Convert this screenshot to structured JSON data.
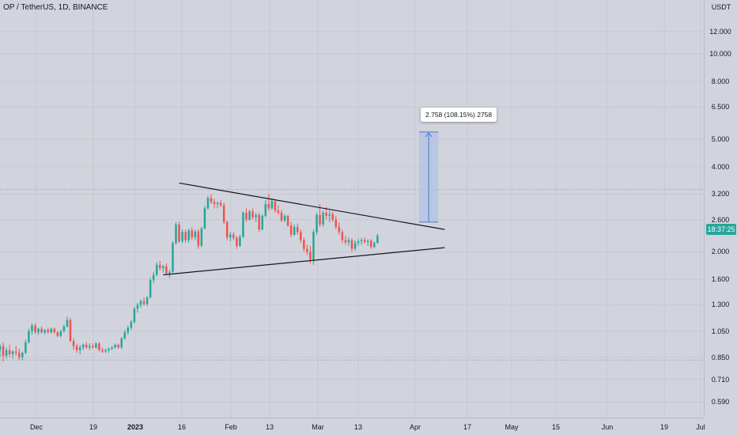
{
  "header": {
    "title": "OP / TetherUS, 1D, BINANCE"
  },
  "price_axis": {
    "unit": "USDT",
    "ticks": [
      "12.000",
      "10.000",
      "8.000",
      "6.500",
      "5.000",
      "4.000",
      "3.200",
      "2.600",
      "2.000",
      "1.600",
      "1.300",
      "1.050",
      "0.850",
      "0.710",
      "0.590"
    ],
    "current_price_time": "18:37:25"
  },
  "time_axis": {
    "labels": [
      {
        "text": "Dec",
        "bold": false
      },
      {
        "text": "19",
        "bold": false
      },
      {
        "text": "2023",
        "bold": true
      },
      {
        "text": "16",
        "bold": false
      },
      {
        "text": "Feb",
        "bold": false
      },
      {
        "text": "13",
        "bold": false
      },
      {
        "text": "Mar",
        "bold": false
      },
      {
        "text": "13",
        "bold": false
      },
      {
        "text": "Apr",
        "bold": false
      },
      {
        "text": "17",
        "bold": false
      },
      {
        "text": "May",
        "bold": false
      },
      {
        "text": "15",
        "bold": false
      },
      {
        "text": "Jun",
        "bold": false
      },
      {
        "text": "19",
        "bold": false
      },
      {
        "text": "Jul",
        "bold": false
      }
    ]
  },
  "measure": {
    "label": "2.758 (108.15%) 2758"
  },
  "colors": {
    "up": "#26a69a",
    "down": "#ef5350",
    "background": "#d1d4dc",
    "measure_fill": "#b2c3e6",
    "measure_line": "#4a78d4",
    "trendline": "#131722"
  },
  "chart_data": {
    "type": "candlestick",
    "title": "OP / TetherUS, 1D, BINANCE",
    "y_scale": "log",
    "ylim": [
      0.52,
      15.5
    ],
    "xlim": [
      "2022-11-25",
      "2023-07-03"
    ],
    "start_date": "2022-11-25",
    "candles": [
      {
        "o": 0.9,
        "h": 0.95,
        "l": 0.85,
        "c": 0.93
      },
      {
        "o": 0.93,
        "h": 0.96,
        "l": 0.82,
        "c": 0.86
      },
      {
        "o": 0.86,
        "h": 0.92,
        "l": 0.84,
        "c": 0.9
      },
      {
        "o": 0.9,
        "h": 0.94,
        "l": 0.85,
        "c": 0.87
      },
      {
        "o": 0.87,
        "h": 0.9,
        "l": 0.84,
        "c": 0.89
      },
      {
        "o": 0.89,
        "h": 0.93,
        "l": 0.86,
        "c": 0.88
      },
      {
        "o": 0.88,
        "h": 0.91,
        "l": 0.83,
        "c": 0.85
      },
      {
        "o": 0.85,
        "h": 0.89,
        "l": 0.83,
        "c": 0.88
      },
      {
        "o": 0.88,
        "h": 0.98,
        "l": 0.87,
        "c": 0.96
      },
      {
        "o": 0.96,
        "h": 1.07,
        "l": 0.95,
        "c": 1.05
      },
      {
        "o": 1.05,
        "h": 1.12,
        "l": 1.02,
        "c": 1.1
      },
      {
        "o": 1.1,
        "h": 1.12,
        "l": 1.03,
        "c": 1.04
      },
      {
        "o": 1.04,
        "h": 1.08,
        "l": 1.02,
        "c": 1.07
      },
      {
        "o": 1.07,
        "h": 1.09,
        "l": 1.03,
        "c": 1.04
      },
      {
        "o": 1.04,
        "h": 1.07,
        "l": 1.02,
        "c": 1.06
      },
      {
        "o": 1.06,
        "h": 1.08,
        "l": 1.03,
        "c": 1.04
      },
      {
        "o": 1.04,
        "h": 1.08,
        "l": 1.03,
        "c": 1.07
      },
      {
        "o": 1.07,
        "h": 1.08,
        "l": 1.03,
        "c": 1.04
      },
      {
        "o": 1.04,
        "h": 1.05,
        "l": 1.0,
        "c": 1.01
      },
      {
        "o": 1.01,
        "h": 1.06,
        "l": 1.0,
        "c": 1.05
      },
      {
        "o": 1.05,
        "h": 1.11,
        "l": 1.04,
        "c": 1.09
      },
      {
        "o": 1.09,
        "h": 1.18,
        "l": 1.08,
        "c": 1.15
      },
      {
        "o": 1.15,
        "h": 1.17,
        "l": 0.96,
        "c": 0.97
      },
      {
        "o": 0.97,
        "h": 0.99,
        "l": 0.9,
        "c": 0.93
      },
      {
        "o": 0.93,
        "h": 0.95,
        "l": 0.88,
        "c": 0.9
      },
      {
        "o": 0.9,
        "h": 0.94,
        "l": 0.87,
        "c": 0.92
      },
      {
        "o": 0.92,
        "h": 0.95,
        "l": 0.9,
        "c": 0.94
      },
      {
        "o": 0.94,
        "h": 0.96,
        "l": 0.91,
        "c": 0.92
      },
      {
        "o": 0.92,
        "h": 0.95,
        "l": 0.9,
        "c": 0.93
      },
      {
        "o": 0.93,
        "h": 0.95,
        "l": 0.91,
        "c": 0.92
      },
      {
        "o": 0.92,
        "h": 0.96,
        "l": 0.91,
        "c": 0.95
      },
      {
        "o": 0.95,
        "h": 0.96,
        "l": 0.89,
        "c": 0.9
      },
      {
        "o": 0.9,
        "h": 0.92,
        "l": 0.88,
        "c": 0.89
      },
      {
        "o": 0.89,
        "h": 0.91,
        "l": 0.88,
        "c": 0.9
      },
      {
        "o": 0.9,
        "h": 0.92,
        "l": 0.88,
        "c": 0.91
      },
      {
        "o": 0.91,
        "h": 0.93,
        "l": 0.9,
        "c": 0.92
      },
      {
        "o": 0.92,
        "h": 0.95,
        "l": 0.91,
        "c": 0.94
      },
      {
        "o": 0.94,
        "h": 0.95,
        "l": 0.91,
        "c": 0.92
      },
      {
        "o": 0.92,
        "h": 1.0,
        "l": 0.91,
        "c": 0.99
      },
      {
        "o": 0.99,
        "h": 1.06,
        "l": 0.98,
        "c": 1.04
      },
      {
        "o": 1.04,
        "h": 1.1,
        "l": 1.02,
        "c": 1.08
      },
      {
        "o": 1.08,
        "h": 1.15,
        "l": 1.06,
        "c": 1.13
      },
      {
        "o": 1.13,
        "h": 1.28,
        "l": 1.12,
        "c": 1.26
      },
      {
        "o": 1.26,
        "h": 1.32,
        "l": 1.22,
        "c": 1.3
      },
      {
        "o": 1.3,
        "h": 1.36,
        "l": 1.27,
        "c": 1.34
      },
      {
        "o": 1.34,
        "h": 1.38,
        "l": 1.29,
        "c": 1.31
      },
      {
        "o": 1.31,
        "h": 1.4,
        "l": 1.29,
        "c": 1.38
      },
      {
        "o": 1.38,
        "h": 1.62,
        "l": 1.37,
        "c": 1.59
      },
      {
        "o": 1.59,
        "h": 1.7,
        "l": 1.55,
        "c": 1.66
      },
      {
        "o": 1.66,
        "h": 1.84,
        "l": 1.64,
        "c": 1.8
      },
      {
        "o": 1.8,
        "h": 1.86,
        "l": 1.72,
        "c": 1.75
      },
      {
        "o": 1.75,
        "h": 1.8,
        "l": 1.69,
        "c": 1.78
      },
      {
        "o": 1.78,
        "h": 1.82,
        "l": 1.66,
        "c": 1.68
      },
      {
        "o": 1.68,
        "h": 1.73,
        "l": 1.62,
        "c": 1.7
      },
      {
        "o": 1.7,
        "h": 2.18,
        "l": 1.69,
        "c": 2.15
      },
      {
        "o": 2.15,
        "h": 2.55,
        "l": 2.12,
        "c": 2.5
      },
      {
        "o": 2.5,
        "h": 2.56,
        "l": 2.15,
        "c": 2.18
      },
      {
        "o": 2.18,
        "h": 2.4,
        "l": 2.15,
        "c": 2.35
      },
      {
        "o": 2.35,
        "h": 2.4,
        "l": 2.15,
        "c": 2.2
      },
      {
        "o": 2.2,
        "h": 2.42,
        "l": 2.15,
        "c": 2.38
      },
      {
        "o": 2.38,
        "h": 2.45,
        "l": 2.2,
        "c": 2.25
      },
      {
        "o": 2.25,
        "h": 2.4,
        "l": 2.2,
        "c": 2.36
      },
      {
        "o": 2.36,
        "h": 2.4,
        "l": 2.05,
        "c": 2.1
      },
      {
        "o": 2.1,
        "h": 2.45,
        "l": 2.08,
        "c": 2.42
      },
      {
        "o": 2.42,
        "h": 2.9,
        "l": 2.4,
        "c": 2.85
      },
      {
        "o": 2.85,
        "h": 3.15,
        "l": 2.82,
        "c": 3.1
      },
      {
        "o": 3.1,
        "h": 3.2,
        "l": 2.95,
        "c": 3.0
      },
      {
        "o": 3.0,
        "h": 3.08,
        "l": 2.85,
        "c": 2.95
      },
      {
        "o": 2.95,
        "h": 3.02,
        "l": 2.85,
        "c": 2.98
      },
      {
        "o": 2.98,
        "h": 3.05,
        "l": 2.88,
        "c": 2.92
      },
      {
        "o": 2.92,
        "h": 2.98,
        "l": 2.5,
        "c": 2.55
      },
      {
        "o": 2.55,
        "h": 2.58,
        "l": 2.2,
        "c": 2.25
      },
      {
        "o": 2.25,
        "h": 2.35,
        "l": 2.18,
        "c": 2.3
      },
      {
        "o": 2.3,
        "h": 2.35,
        "l": 2.2,
        "c": 2.24
      },
      {
        "o": 2.24,
        "h": 2.28,
        "l": 2.05,
        "c": 2.1
      },
      {
        "o": 2.1,
        "h": 2.3,
        "l": 2.08,
        "c": 2.26
      },
      {
        "o": 2.26,
        "h": 2.78,
        "l": 2.24,
        "c": 2.75
      },
      {
        "o": 2.75,
        "h": 2.85,
        "l": 2.55,
        "c": 2.6
      },
      {
        "o": 2.6,
        "h": 2.82,
        "l": 2.58,
        "c": 2.78
      },
      {
        "o": 2.78,
        "h": 2.85,
        "l": 2.6,
        "c": 2.65
      },
      {
        "o": 2.65,
        "h": 2.75,
        "l": 2.55,
        "c": 2.7
      },
      {
        "o": 2.7,
        "h": 2.75,
        "l": 2.35,
        "c": 2.4
      },
      {
        "o": 2.4,
        "h": 2.72,
        "l": 2.38,
        "c": 2.68
      },
      {
        "o": 2.68,
        "h": 3.05,
        "l": 2.65,
        "c": 2.95
      },
      {
        "o": 2.95,
        "h": 3.2,
        "l": 2.8,
        "c": 2.85
      },
      {
        "o": 2.85,
        "h": 3.1,
        "l": 2.82,
        "c": 3.02
      },
      {
        "o": 3.02,
        "h": 3.05,
        "l": 2.75,
        "c": 2.8
      },
      {
        "o": 2.8,
        "h": 2.92,
        "l": 2.7,
        "c": 2.75
      },
      {
        "o": 2.75,
        "h": 2.82,
        "l": 2.55,
        "c": 2.58
      },
      {
        "o": 2.58,
        "h": 2.72,
        "l": 2.55,
        "c": 2.68
      },
      {
        "o": 2.68,
        "h": 2.7,
        "l": 2.45,
        "c": 2.48
      },
      {
        "o": 2.48,
        "h": 2.55,
        "l": 2.25,
        "c": 2.3
      },
      {
        "o": 2.3,
        "h": 2.5,
        "l": 2.28,
        "c": 2.45
      },
      {
        "o": 2.45,
        "h": 2.52,
        "l": 2.3,
        "c": 2.35
      },
      {
        "o": 2.35,
        "h": 2.4,
        "l": 2.15,
        "c": 2.2
      },
      {
        "o": 2.2,
        "h": 2.25,
        "l": 2.0,
        "c": 2.05
      },
      {
        "o": 2.05,
        "h": 2.12,
        "l": 1.95,
        "c": 2.0
      },
      {
        "o": 2.0,
        "h": 2.1,
        "l": 1.82,
        "c": 1.88
      },
      {
        "o": 1.88,
        "h": 2.4,
        "l": 1.8,
        "c": 2.35
      },
      {
        "o": 2.35,
        "h": 2.75,
        "l": 2.3,
        "c": 2.7
      },
      {
        "o": 2.7,
        "h": 2.95,
        "l": 2.45,
        "c": 2.5
      },
      {
        "o": 2.5,
        "h": 2.8,
        "l": 2.45,
        "c": 2.75
      },
      {
        "o": 2.75,
        "h": 2.88,
        "l": 2.6,
        "c": 2.68
      },
      {
        "o": 2.68,
        "h": 2.8,
        "l": 2.55,
        "c": 2.72
      },
      {
        "o": 2.72,
        "h": 2.78,
        "l": 2.55,
        "c": 2.6
      },
      {
        "o": 2.6,
        "h": 2.68,
        "l": 2.4,
        "c": 2.45
      },
      {
        "o": 2.45,
        "h": 2.55,
        "l": 2.3,
        "c": 2.35
      },
      {
        "o": 2.35,
        "h": 2.4,
        "l": 2.15,
        "c": 2.2
      },
      {
        "o": 2.2,
        "h": 2.28,
        "l": 2.12,
        "c": 2.16
      },
      {
        "o": 2.16,
        "h": 2.25,
        "l": 2.1,
        "c": 2.2
      },
      {
        "o": 2.2,
        "h": 2.24,
        "l": 2.0,
        "c": 2.05
      },
      {
        "o": 2.05,
        "h": 2.2,
        "l": 2.02,
        "c": 2.15
      },
      {
        "o": 2.15,
        "h": 2.22,
        "l": 2.1,
        "c": 2.18
      },
      {
        "o": 2.18,
        "h": 2.24,
        "l": 2.12,
        "c": 2.2
      },
      {
        "o": 2.2,
        "h": 2.25,
        "l": 2.14,
        "c": 2.17
      },
      {
        "o": 2.17,
        "h": 2.22,
        "l": 2.1,
        "c": 2.19
      },
      {
        "o": 2.19,
        "h": 2.22,
        "l": 2.05,
        "c": 2.08
      },
      {
        "o": 2.08,
        "h": 2.18,
        "l": 2.06,
        "c": 2.15
      },
      {
        "o": 2.15,
        "h": 2.32,
        "l": 2.14,
        "c": 2.28
      }
    ],
    "annotations": {
      "upper_trendline": {
        "from": {
          "date": "2023-01-20",
          "price": 3.5
        },
        "to": {
          "date": "2023-04-13",
          "price": 2.4
        }
      },
      "lower_trendline": {
        "from": {
          "date": "2023-01-15",
          "price": 1.66
        },
        "to": {
          "date": "2023-04-13",
          "price": 2.07
        }
      },
      "measure": {
        "from_date": "2023-04-05",
        "to_date": "2023-04-11",
        "low": 2.55,
        "high": 5.3,
        "label": "2.758 (108.15%) 2758"
      },
      "reference_lines": [
        3.32,
        0.83
      ]
    }
  }
}
